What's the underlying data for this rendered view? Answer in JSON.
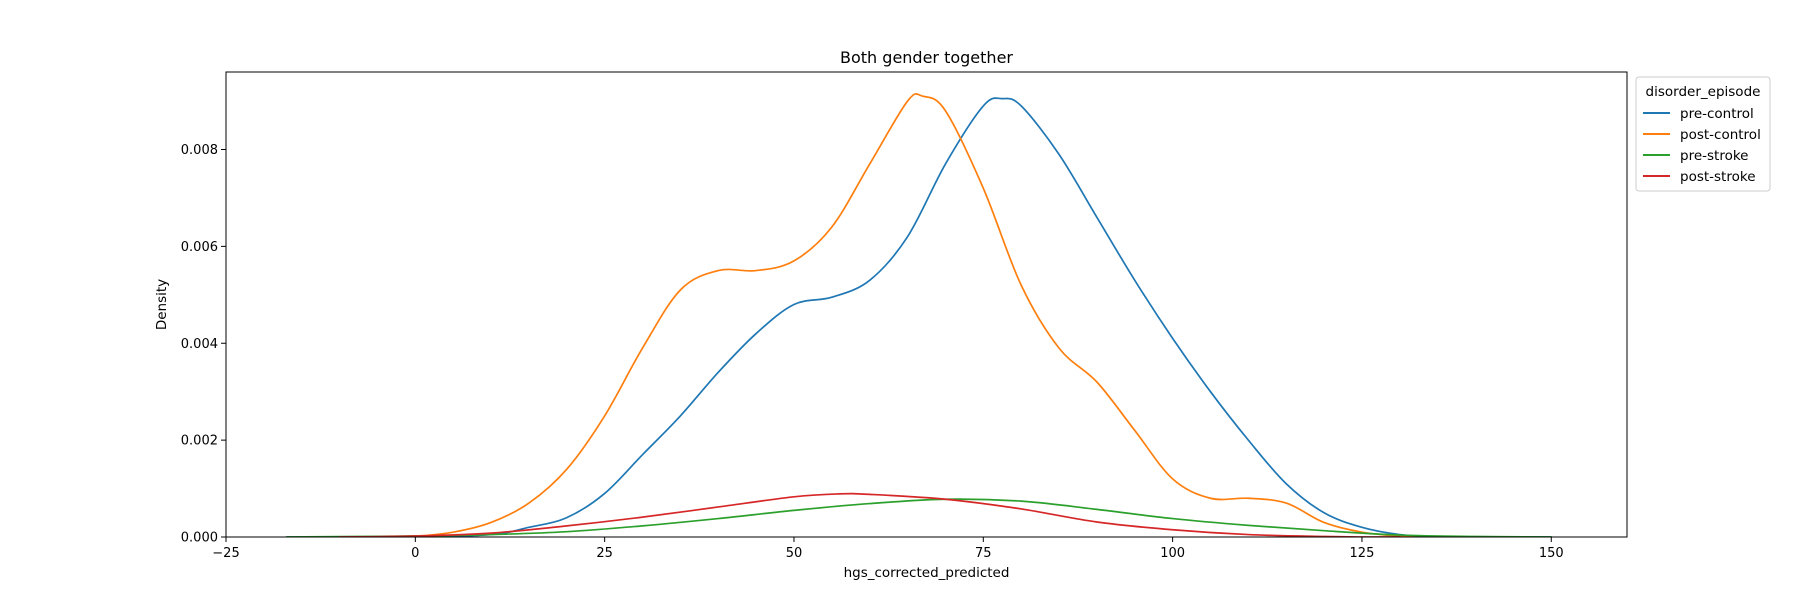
{
  "chart_data": {
    "type": "line",
    "title": "Both gender together",
    "xlabel": "hgs_corrected_predicted",
    "ylabel": "Density",
    "xlim": [
      -25,
      160
    ],
    "ylim": [
      0,
      0.0096
    ],
    "xticks": [
      -25,
      0,
      25,
      50,
      75,
      100,
      125,
      150
    ],
    "xtick_labels": [
      "−25",
      "0",
      "25",
      "50",
      "75",
      "100",
      "125",
      "150"
    ],
    "yticks": [
      0,
      0.002,
      0.004,
      0.006,
      0.008
    ],
    "ytick_labels": [
      "0.000",
      "0.002",
      "0.004",
      "0.006",
      "0.008"
    ],
    "grid": false,
    "legend": {
      "title": "disorder_episode",
      "placement": "outside-top-right"
    },
    "series": [
      {
        "name": "pre-control",
        "color": "#1f77b4",
        "x": [
          -17,
          0,
          10,
          15,
          20,
          25,
          30,
          35,
          40,
          45,
          50,
          55,
          60,
          65,
          70,
          75,
          77.5,
          80,
          85,
          90,
          95,
          100,
          105,
          110,
          115,
          120,
          125,
          130,
          135,
          140,
          150
        ],
        "y": [
          0,
          0,
          5e-05,
          0.0002,
          0.0004,
          0.0009,
          0.0017,
          0.0025,
          0.0034,
          0.0042,
          0.0048,
          0.00495,
          0.0053,
          0.0062,
          0.0077,
          0.0089,
          0.00905,
          0.0089,
          0.0079,
          0.0066,
          0.0053,
          0.0041,
          0.003,
          0.002,
          0.0011,
          0.0005,
          0.0002,
          5e-05,
          0,
          0,
          0
        ]
      },
      {
        "name": "post-control",
        "color": "#ff7f0e",
        "x": [
          -8,
          0,
          5,
          10,
          15,
          20,
          25,
          30,
          35,
          40,
          45,
          50,
          55,
          60,
          65,
          67,
          70,
          75,
          80,
          85,
          90,
          95,
          100,
          105,
          110,
          115,
          120,
          125,
          130,
          135
        ],
        "y": [
          0,
          2e-05,
          0.0001,
          0.0003,
          0.0007,
          0.0014,
          0.0025,
          0.0039,
          0.0051,
          0.0055,
          0.0055,
          0.0057,
          0.0064,
          0.0077,
          0.009,
          0.0091,
          0.0088,
          0.0072,
          0.0052,
          0.0039,
          0.0032,
          0.0022,
          0.0012,
          0.0008,
          0.0008,
          0.0007,
          0.0003,
          0.0001,
          2e-05,
          0
        ]
      },
      {
        "name": "pre-stroke",
        "color": "#2ca02c",
        "x": [
          -17,
          0,
          10,
          20,
          30,
          40,
          50,
          60,
          70,
          80,
          90,
          100,
          110,
          120,
          130,
          140,
          150
        ],
        "y": [
          0,
          2e-05,
          5e-05,
          0.00011,
          0.00023,
          0.00038,
          0.00055,
          0.00069,
          0.00078,
          0.00074,
          0.00057,
          0.00038,
          0.00024,
          0.00013,
          4e-05,
          1e-05,
          0
        ]
      },
      {
        "name": "post-stroke",
        "color": "#d62728",
        "x": [
          -10,
          0,
          10,
          20,
          30,
          40,
          50,
          56,
          60,
          70,
          80,
          90,
          100,
          110,
          120,
          125,
          130
        ],
        "y": [
          0,
          2e-05,
          8e-05,
          0.00023,
          0.00041,
          0.00062,
          0.00083,
          0.00089,
          0.00088,
          0.00078,
          0.00058,
          0.00031,
          0.00015,
          5e-05,
          1e-05,
          0,
          0
        ]
      }
    ]
  }
}
